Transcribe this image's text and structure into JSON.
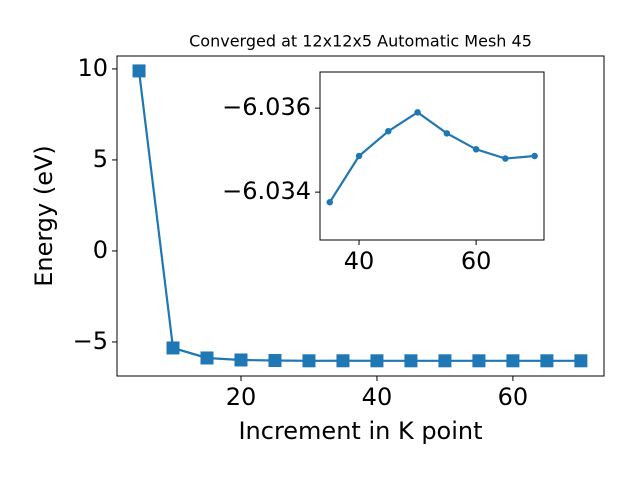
{
  "chart_data": [
    {
      "type": "line",
      "title": "Converged at 12x12x5 Automatic Mesh 45",
      "xlabel": "Increment in K point",
      "ylabel": "Energy (eV)",
      "x": [
        5,
        10,
        15,
        20,
        25,
        30,
        35,
        40,
        45,
        50,
        55,
        60,
        65,
        70
      ],
      "values": [
        9.89,
        -5.33,
        -5.88,
        -5.99,
        -6.02,
        -6.035,
        -6.03376,
        -6.03486,
        -6.03545,
        -6.0359,
        -6.0354,
        -6.03502,
        -6.0348,
        -6.03486
      ],
      "color": "#1f77b4",
      "marker": "square",
      "xlim": [
        1.76,
        73.4
      ],
      "xticks": [
        20,
        40,
        60
      ],
      "ylim": [
        -6.87,
        10.71
      ],
      "yticks": [
        {
          "value": -5,
          "label": "−5"
        },
        0,
        5,
        10
      ]
    },
    {
      "type": "line",
      "x": [
        35,
        40,
        45,
        50,
        55,
        60,
        65,
        70
      ],
      "values": [
        -6.03376,
        -6.03486,
        -6.03545,
        -6.0359,
        -6.0354,
        -6.03502,
        -6.0348,
        -6.03486
      ],
      "color": "#1f77b4",
      "marker": "circle",
      "xlim": [
        33.33,
        71.6
      ],
      "xticks": [
        40,
        60
      ],
      "ylim": [
        -6.03286,
        -6.03686
      ],
      "yticks": [
        {
          "value": -6.034,
          "label": "−6.034"
        },
        {
          "value": -6.036,
          "label": "−6.036"
        }
      ]
    }
  ]
}
